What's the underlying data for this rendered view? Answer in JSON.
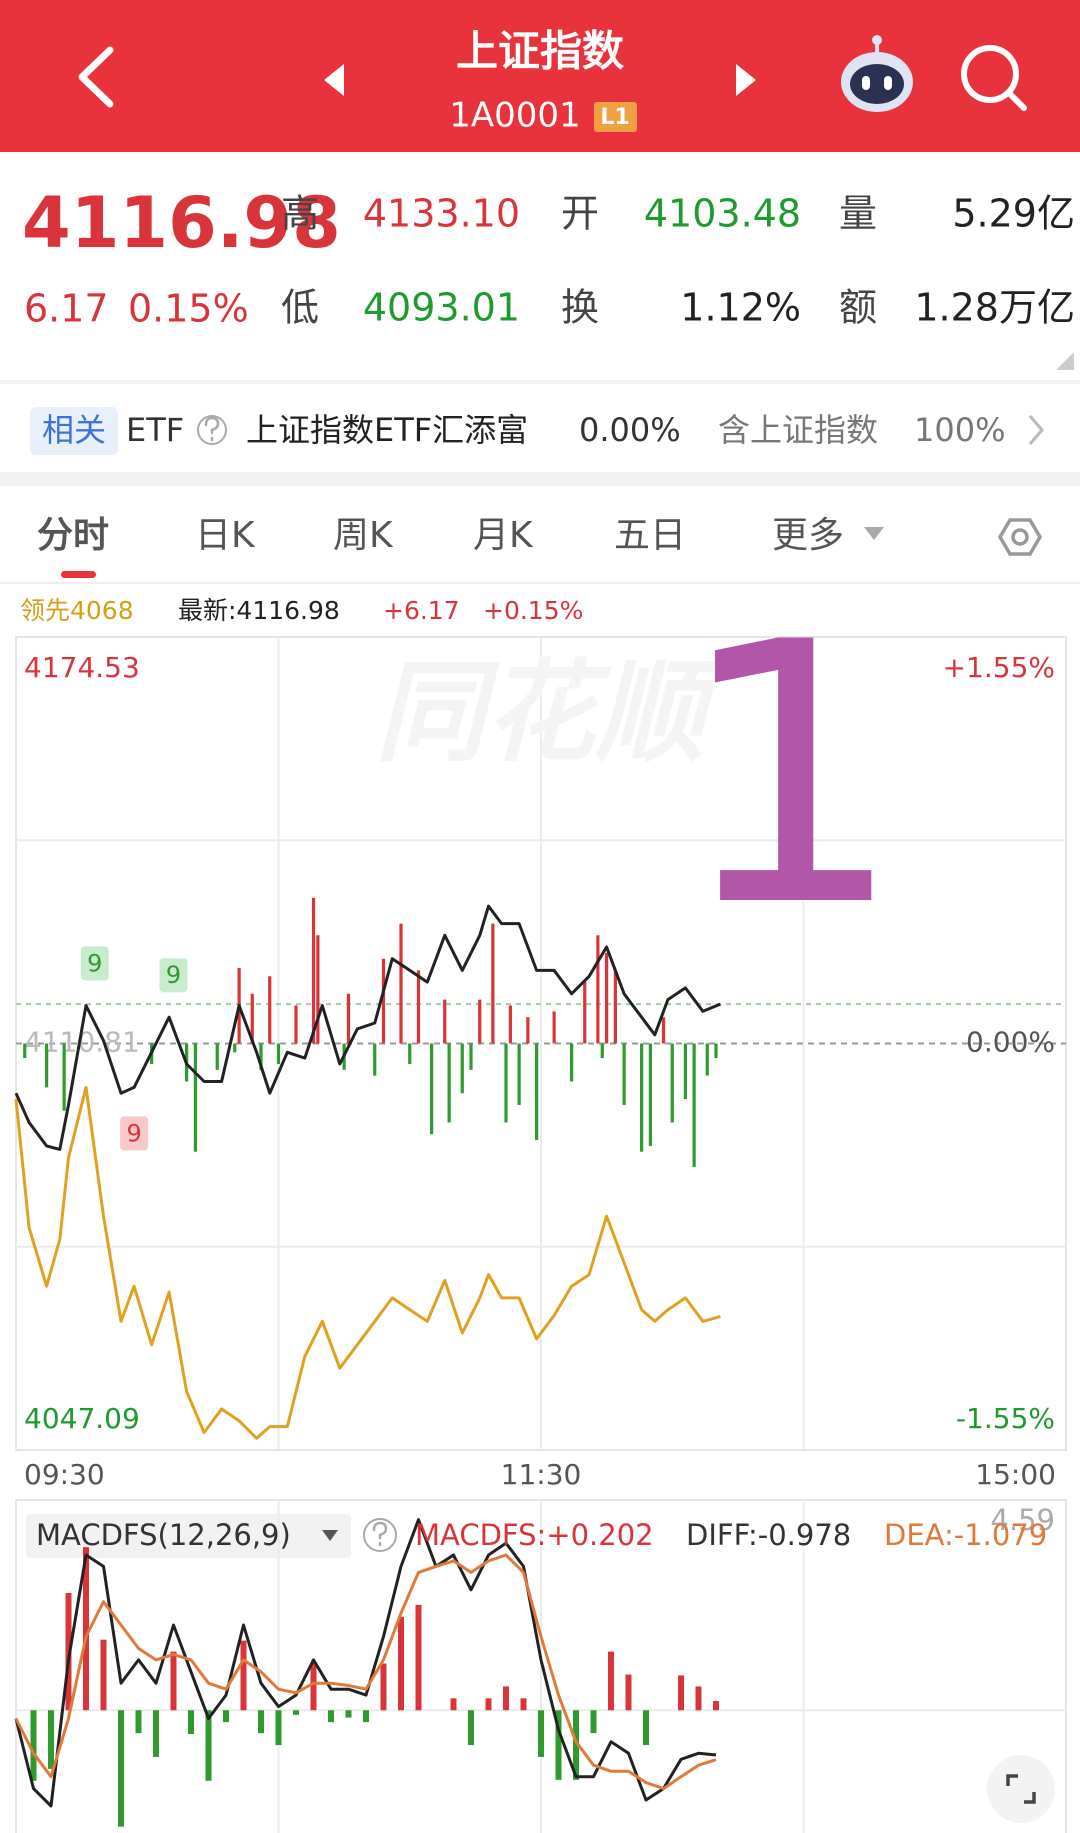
{
  "header": {
    "title": "上证指数",
    "code": "1A0001",
    "level": "L1"
  },
  "quote": {
    "price": "4116.98",
    "change": "6.17",
    "change_pct": "0.15%",
    "fields": [
      {
        "label": "高",
        "value": "4133.10",
        "color": "#d9343a"
      },
      {
        "label": "开",
        "value": "4103.48",
        "color": "#1f9a2f"
      },
      {
        "label": "量",
        "value": "5.29亿",
        "color": "#222222"
      },
      {
        "label": "低",
        "value": "4093.01",
        "color": "#1f9a2f"
      },
      {
        "label": "换",
        "value": "1.12%",
        "color": "#222222"
      },
      {
        "label": "额",
        "value": "1.28万亿",
        "color": "#222222"
      }
    ]
  },
  "etf": {
    "tag": "相关",
    "type": "ETF",
    "name": "上证指数ETF汇添富",
    "pct": "0.00%",
    "holding": "含上证指数",
    "holding_pct": "100%"
  },
  "tabs": [
    "分时",
    "日K",
    "周K",
    "月K",
    "五日",
    "更多"
  ],
  "chart_data": [
    {
      "type": "line",
      "legend": {
        "lead": "领先4068",
        "latest": "最新:4116.98",
        "change": "+6.17",
        "pct": "+0.15%"
      },
      "watermark": "同花顺",
      "annotation": {
        "text": "1",
        "color": "#b257a8"
      },
      "latest": 4116.98,
      "baseline": 4110.81,
      "xlim": [
        0,
        240
      ],
      "xticks": [
        {
          "value": 0,
          "label": "09:30"
        },
        {
          "value": 120,
          "label": "11:30"
        },
        {
          "value": 240,
          "label": "15:00"
        }
      ],
      "ylim": [
        4047.09,
        4174.53
      ],
      "yticks": [
        4047.09,
        4110.81,
        4174.53
      ],
      "y2lim": [
        -1.55,
        1.55
      ],
      "y2ticks": [
        {
          "value": -1.55,
          "label": "-1.55%"
        },
        {
          "value": 0,
          "label": "0.00%"
        },
        {
          "value": 1.55,
          "label": "+1.55%"
        }
      ],
      "grid": true,
      "series": [
        {
          "color": "#e0a020",
          "x": [
            0,
            3,
            7,
            10,
            12,
            16,
            20,
            24,
            27,
            31,
            35,
            39,
            43,
            47,
            51,
            55,
            58,
            62,
            66,
            70,
            74,
            78,
            82,
            86,
            90,
            94,
            98,
            102,
            106,
            108,
            111,
            115,
            119,
            123,
            127,
            131,
            135,
            139,
            143,
            146,
            149,
            153,
            157,
            161
          ],
          "values": [
            4102.1,
            4081.93,
            4072.76,
            4080.09,
            4092.93,
            4103.93,
            4083.76,
            4067.26,
            4072.76,
            4063.59,
            4071.84,
            4056.26,
            4049.84,
            4053.51,
            4051.67,
            4048.92,
            4050.76,
            4050.76,
            4061.76,
            4067.26,
            4059.92,
            4063.59,
            4067.26,
            4070.93,
            4069.09,
            4067.26,
            4073.68,
            4065.43,
            4070.93,
            4074.59,
            4070.93,
            4070.93,
            4064.51,
            4068.18,
            4072.76,
            4074.59,
            4083.76,
            4076.43,
            4069.09,
            4067.26,
            4069.09,
            4070.93,
            4067.26,
            4068
          ]
        },
        {
          "color": "#222222",
          "x": [
            0,
            3,
            7,
            10,
            12,
            16,
            20,
            24,
            27,
            31,
            35,
            39,
            43,
            47,
            51,
            55,
            58,
            62,
            66,
            70,
            74,
            78,
            82,
            86,
            90,
            94,
            98,
            102,
            106,
            108,
            111,
            115,
            119,
            123,
            127,
            131,
            135,
            139,
            143,
            146,
            149,
            153,
            157,
            161
          ],
          "values": [
            4103.02,
            4098.43,
            4094.76,
            4094.21,
            4101.18,
            4116.77,
            4111.27,
            4103.02,
            4103.93,
            4109.43,
            4114.93,
            4107.6,
            4104.85,
            4104.85,
            4116.77,
            4109.43,
            4103.02,
            4109.43,
            4108.52,
            4116.77,
            4107.6,
            4113.1,
            4114.02,
            4124.1,
            4122.27,
            4120.44,
            4127.77,
            4122.27,
            4127.77,
            4132.35,
            4129.6,
            4129.6,
            4122.27,
            4122.27,
            4118.6,
            4121.35,
            4125.94,
            4118.6,
            4114.93,
            4112.18,
            4117.69,
            4119.52,
            4115.85,
            4116.98
          ]
        }
      ],
      "bars": {
        "up_color": "#d9343a",
        "down_color": "#2f9a2f",
        "x": [
          2,
          7,
          11,
          31,
          39,
          41,
          46,
          50,
          51,
          54,
          56,
          58,
          60,
          64,
          68,
          69,
          75,
          76,
          82,
          84,
          88,
          90,
          92,
          95,
          98,
          99,
          102,
          104,
          106,
          109,
          112,
          113,
          115,
          117,
          119,
          123,
          127,
          130,
          133,
          134,
          135,
          137,
          139,
          143,
          145,
          148,
          150,
          153,
          155,
          158,
          160
        ],
        "values": [
          4108.52,
          4103.93,
          4100.27,
          4107.6,
          4104.85,
          4093.85,
          4106.68,
          4109.43,
          4122.64,
          4118.6,
          4106.68,
          4121.35,
          4107.6,
          4116.77,
          4133.64,
          4127.77,
          4106.68,
          4118.6,
          4105.77,
          4124.1,
          4129.6,
          4107.6,
          4122.27,
          4096.6,
          4117.69,
          4098.43,
          4103.02,
          4106.68,
          4117.69,
          4129.6,
          4098.43,
          4116.77,
          4101.18,
          4114.93,
          4095.68,
          4115.85,
          4104.85,
          4120.44,
          4127.77,
          4108.52,
          4125.02,
          4122.27,
          4101.18,
          4093.85,
          4094.76,
          4114.93,
          4098.43,
          4102.1,
          4091.46,
          4105.77,
          4108.52
        ]
      },
      "markers": [
        {
          "label": "9",
          "x": 18,
          "side": "above",
          "color": "#2f9a2f",
          "bg": "#c6eccb"
        },
        {
          "label": "9",
          "x": 27,
          "side": "below",
          "color": "#d9343a",
          "bg": "#f8c9c9"
        },
        {
          "label": "9",
          "x": 36,
          "side": "above",
          "color": "#2f9a2f",
          "bg": "#c6eccb"
        }
      ]
    },
    {
      "type": "macd",
      "title": "MACDFS(12,26,9)",
      "labels": {
        "macd": "MACDFS:+0.202",
        "diff": "DIFF:-0.978",
        "dea": "DEA:-1.079"
      },
      "xlim": [
        0,
        240
      ],
      "ylim": [
        -2.68,
        4.59
      ],
      "yticks": [
        4.59
      ],
      "up_color": "#d9343a",
      "down_color": "#2f9a2f",
      "x": [
        0,
        4,
        8,
        12,
        16,
        20,
        24,
        28,
        32,
        36,
        40,
        44,
        48,
        52,
        56,
        60,
        64,
        68,
        72,
        76,
        80,
        84,
        88,
        92,
        96,
        100,
        104,
        108,
        112,
        116,
        120,
        124,
        128,
        132,
        136,
        140,
        144,
        148,
        152,
        156,
        160
      ],
      "histogram": [
        0,
        -1.54,
        -1.28,
        2.56,
        3.56,
        1.54,
        -2.54,
        -0.5,
        -1.02,
        1.28,
        -0.52,
        -1.54,
        -0.26,
        1.52,
        -0.5,
        -0.76,
        -0.1,
        1.02,
        -0.26,
        -0.16,
        -0.26,
        1.02,
        2.04,
        2.3,
        0,
        0.26,
        -0.76,
        0.26,
        0.52,
        0.26,
        -1.02,
        -1.52,
        -1.52,
        -0.5,
        1.28,
        0.78,
        -0.76,
        0,
        0.76,
        0.52,
        0.202
      ],
      "series": [
        {
          "color": "#222222",
          "values": [
            -0.18,
            -1.71,
            -2.09,
            1.1,
            3.39,
            3.14,
            0.59,
            1.1,
            0.59,
            1.86,
            0.84,
            -0.18,
            0.33,
            1.86,
            0.59,
            0.08,
            0.33,
            1.1,
            0.46,
            0.46,
            0.33,
            1.61,
            3.14,
            4.16,
            3.14,
            3.39,
            2.63,
            3.39,
            3.65,
            3.14,
            1.1,
            -0.43,
            -1.45,
            -1.45,
            -0.69,
            -0.94,
            -1.96,
            -1.71,
            -1.07,
            -0.94,
            -0.978
          ]
        },
        {
          "color": "#e07a3a",
          "values": [
            -0.18,
            -0.94,
            -1.45,
            -0.18,
            1.61,
            2.37,
            1.86,
            1.35,
            1.1,
            1.22,
            1.1,
            0.59,
            0.46,
            1.1,
            0.84,
            0.46,
            0.38,
            0.59,
            0.59,
            0.54,
            0.46,
            1.1,
            2.12,
            3.01,
            3.14,
            3.26,
            3.01,
            3.26,
            3.39,
            3.01,
            1.61,
            0.33,
            -0.69,
            -1.2,
            -1.33,
            -1.33,
            -1.58,
            -1.71,
            -1.45,
            -1.2,
            -1.079
          ]
        }
      ]
    }
  ]
}
